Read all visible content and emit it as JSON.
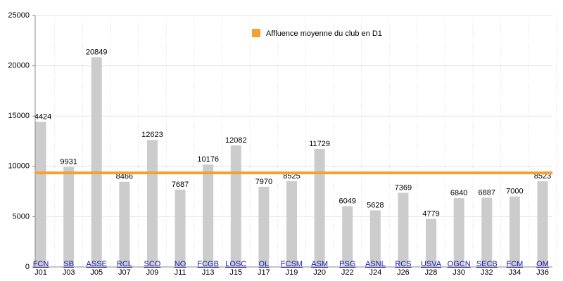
{
  "chart_data": {
    "type": "bar",
    "categories": [
      "J01",
      "J03",
      "J05",
      "J07",
      "J09",
      "J11",
      "J13",
      "J15",
      "J17",
      "J19",
      "J20",
      "J22",
      "J24",
      "J26",
      "J28",
      "J30",
      "J32",
      "J34",
      "J36"
    ],
    "teams": [
      "FCN",
      "SB",
      "ASSE",
      "RCL",
      "SCO",
      "NO",
      "FCGB",
      "LOSC",
      "OL",
      "FCSM",
      "ASM",
      "PSG",
      "ASNL",
      "RCS",
      "USVA",
      "OGCN",
      "SECB",
      "FCM",
      "OM"
    ],
    "values": [
      14424,
      9931,
      20849,
      8466,
      12623,
      7687,
      10176,
      12082,
      7970,
      8525,
      11729,
      6049,
      5628,
      7369,
      4779,
      6840,
      6887,
      7000,
      8523
    ],
    "color": "#cccccc",
    "ylim": [
      0,
      25000
    ],
    "yticks": [
      0,
      5000,
      10000,
      15000,
      20000,
      25000
    ],
    "grid": true,
    "reference_line": {
      "name": "Affluence moyenne du club en D1",
      "value": 9350,
      "color": "#f5a030"
    }
  }
}
